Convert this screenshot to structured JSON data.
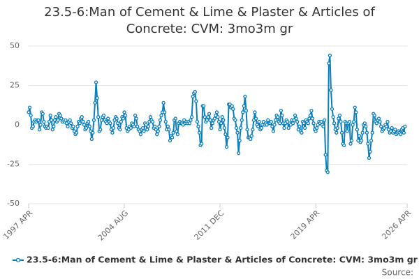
{
  "chart_data": {
    "type": "line",
    "title": "23.5-6:Man of Cement & Lime & Plaster & Articles of Concrete: CVM: 3mo3m gr",
    "source": "Source:",
    "x": [
      "1997-04",
      "1997-05",
      "1997-06",
      "1997-07",
      "1997-08",
      "1997-09",
      "1997-10",
      "1997-11",
      "1997-12",
      "1998-01",
      "1998-02",
      "1998-03",
      "1998-04",
      "1998-05",
      "1998-06",
      "1998-07",
      "1998-08",
      "1998-09",
      "1998-10",
      "1998-11",
      "1998-12",
      "1999-01",
      "1999-02",
      "1999-03",
      "1999-04",
      "1999-05",
      "1999-06",
      "1999-07",
      "1999-08",
      "1999-09",
      "1999-10",
      "1999-11",
      "1999-12",
      "2000-01",
      "2000-02",
      "2000-03",
      "2000-04",
      "2000-05",
      "2000-06",
      "2000-07",
      "2000-08",
      "2000-09",
      "2000-10",
      "2000-11",
      "2000-12",
      "2001-01",
      "2001-02",
      "2001-03",
      "2001-04",
      "2001-05",
      "2001-06",
      "2001-07",
      "2001-08",
      "2001-09",
      "2001-10",
      "2001-11",
      "2001-12",
      "2002-01",
      "2002-02",
      "2002-03",
      "2002-04",
      "2002-05",
      "2002-06",
      "2002-07",
      "2002-08",
      "2002-09",
      "2002-10",
      "2002-11",
      "2002-12",
      "2003-01",
      "2003-02",
      "2003-03",
      "2003-04",
      "2003-05",
      "2003-06",
      "2003-07",
      "2003-08",
      "2003-09",
      "2003-10",
      "2003-11",
      "2003-12",
      "2004-01",
      "2004-02",
      "2004-03",
      "2004-04",
      "2004-05",
      "2004-06",
      "2004-07",
      "2004-08",
      "2004-09",
      "2004-10",
      "2004-11",
      "2004-12",
      "2005-01",
      "2005-02",
      "2005-03",
      "2005-04",
      "2005-05",
      "2005-06",
      "2005-07",
      "2005-08",
      "2005-09",
      "2005-10",
      "2005-11",
      "2005-12",
      "2006-01",
      "2006-02",
      "2006-03",
      "2006-04",
      "2006-05",
      "2006-06",
      "2006-07",
      "2006-08",
      "2006-09",
      "2006-10",
      "2006-11",
      "2006-12",
      "2007-01",
      "2007-02",
      "2007-03",
      "2007-04",
      "2007-05",
      "2007-06",
      "2007-07",
      "2007-08",
      "2007-09",
      "2007-10",
      "2007-11",
      "2007-12",
      "2008-01",
      "2008-02",
      "2008-03",
      "2008-04",
      "2008-05",
      "2008-06",
      "2008-07",
      "2008-08",
      "2008-09",
      "2008-10",
      "2008-11",
      "2008-12",
      "2009-01",
      "2009-02",
      "2009-03",
      "2009-04",
      "2009-05",
      "2009-06",
      "2009-07",
      "2009-08",
      "2009-09",
      "2009-10",
      "2009-11",
      "2009-12",
      "2010-01",
      "2010-02",
      "2010-03",
      "2010-04",
      "2010-05",
      "2010-06",
      "2010-07",
      "2010-08",
      "2010-09",
      "2010-10",
      "2010-11",
      "2010-12",
      "2011-01",
      "2011-02",
      "2011-03",
      "2011-04",
      "2011-05",
      "2011-06",
      "2011-07",
      "2011-08",
      "2011-09",
      "2011-10",
      "2011-11",
      "2011-12",
      "2012-01",
      "2012-02",
      "2012-03",
      "2012-04",
      "2012-05",
      "2012-06",
      "2012-07",
      "2012-08",
      "2012-09",
      "2012-10",
      "2012-11",
      "2012-12",
      "2013-01",
      "2013-02",
      "2013-03",
      "2013-04",
      "2013-05",
      "2013-06",
      "2013-07",
      "2013-08",
      "2013-09",
      "2013-10",
      "2013-11",
      "2013-12",
      "2014-01",
      "2014-02",
      "2014-03",
      "2014-04",
      "2014-05",
      "2014-06",
      "2014-07",
      "2014-08",
      "2014-09",
      "2014-10",
      "2014-11",
      "2014-12",
      "2015-01",
      "2015-02",
      "2015-03",
      "2015-04",
      "2015-05",
      "2015-06",
      "2015-07",
      "2015-08",
      "2015-09",
      "2015-10",
      "2015-11",
      "2015-12",
      "2016-01",
      "2016-02",
      "2016-03",
      "2016-04",
      "2016-05",
      "2016-06",
      "2016-07",
      "2016-08",
      "2016-09",
      "2016-10",
      "2016-11",
      "2016-12",
      "2017-01",
      "2017-02",
      "2017-03",
      "2017-04",
      "2017-05",
      "2017-06",
      "2017-07",
      "2017-08",
      "2017-09",
      "2017-10",
      "2017-11",
      "2017-12",
      "2018-01",
      "2018-02",
      "2018-03",
      "2018-04",
      "2018-05",
      "2018-06",
      "2018-07",
      "2018-08",
      "2018-09",
      "2018-10",
      "2018-11",
      "2018-12",
      "2019-01",
      "2019-02",
      "2019-03",
      "2019-04",
      "2019-05",
      "2019-06",
      "2019-07",
      "2019-08",
      "2019-09",
      "2019-10",
      "2019-11",
      "2019-12",
      "2020-01",
      "2020-02",
      "2020-03",
      "2020-04",
      "2020-05",
      "2020-06",
      "2020-07",
      "2020-08",
      "2020-09",
      "2020-10",
      "2020-11",
      "2020-12",
      "2021-01",
      "2021-02",
      "2021-03",
      "2021-04",
      "2021-05",
      "2021-06",
      "2021-07",
      "2021-08",
      "2021-09",
      "2021-10",
      "2021-11",
      "2021-12",
      "2022-01",
      "2022-02",
      "2022-03",
      "2022-04",
      "2022-05",
      "2022-06",
      "2022-07",
      "2022-08",
      "2022-09",
      "2022-10",
      "2022-11",
      "2022-12",
      "2023-01",
      "2023-02",
      "2023-03",
      "2023-04",
      "2023-05",
      "2023-06",
      "2023-07",
      "2023-08",
      "2023-09",
      "2023-10",
      "2023-11",
      "2023-12",
      "2024-01",
      "2024-02",
      "2024-03",
      "2024-04",
      "2024-05",
      "2024-06",
      "2024-07",
      "2024-08",
      "2024-09",
      "2024-10",
      "2024-11",
      "2024-12",
      "2025-01",
      "2025-02",
      "2025-03",
      "2025-04",
      "2025-05",
      "2025-06",
      "2025-07",
      "2025-08",
      "2025-09",
      "2025-10",
      "2025-11",
      "2025-12",
      "2026-01",
      "2026-02"
    ],
    "series": [
      {
        "name": "23.5-6:Man of Cement & Lime & Plaster & Articles of Concrete: CVM: 3mo3m gr",
        "color": "#0a7fbd",
        "values": [
          8,
          11,
          6,
          -2,
          -1,
          2,
          3,
          2,
          3,
          3,
          -3,
          0,
          8,
          7,
          2,
          -1,
          -2,
          -1,
          -2,
          2,
          6,
          3,
          -3,
          -1,
          3,
          5,
          2,
          3,
          7,
          6,
          4,
          2,
          3,
          2,
          3,
          1,
          -1,
          2,
          3,
          1,
          -2,
          -1,
          -4,
          -6,
          -5,
          -1,
          2,
          1,
          4,
          5,
          2,
          0,
          -3,
          -2,
          1,
          2,
          -1,
          -4,
          -9,
          -5,
          3,
          14,
          27,
          17,
          5,
          -4,
          -3,
          3,
          5,
          6,
          3,
          2,
          1,
          4,
          2,
          1,
          -3,
          -5,
          -2,
          3,
          5,
          4,
          1,
          -2,
          -3,
          2,
          5,
          4,
          8,
          6,
          -2,
          -4,
          -3,
          -1,
          -2,
          1,
          0,
          -1,
          6,
          4,
          -1,
          -3,
          -4,
          -6,
          -3,
          -2,
          -4,
          1,
          0,
          -3,
          -1,
          2,
          5,
          3,
          2,
          -2,
          -1,
          -3,
          -6,
          -4,
          -1,
          3,
          6,
          8,
          14,
          8,
          2,
          -3,
          -1,
          -3,
          -10,
          -7,
          -8,
          -5,
          3,
          4,
          -4,
          -6,
          1,
          2,
          1,
          1,
          0,
          3,
          1,
          2,
          1,
          2,
          1,
          3,
          5,
          18,
          20,
          21,
          15,
          2,
          -1,
          -5,
          -13,
          -12,
          12,
          12,
          5,
          2,
          3,
          5,
          7,
          3,
          -2,
          1,
          3,
          4,
          6,
          8,
          5,
          2,
          -3,
          1,
          5,
          3,
          -2,
          -6,
          -14,
          -8,
          13,
          13,
          11,
          12,
          10,
          4,
          3,
          -2,
          -5,
          -18,
          -10,
          -2,
          3,
          8,
          12,
          18,
          9,
          -3,
          -8,
          -8,
          -9,
          -7,
          -3,
          3,
          8,
          4,
          0,
          -1,
          2,
          -3,
          -2,
          0,
          2,
          0,
          1,
          0,
          3,
          1,
          1,
          2,
          -1,
          -4,
          0,
          3,
          6,
          5,
          2,
          1,
          9,
          6,
          1,
          -2,
          1,
          3,
          2,
          -2,
          1,
          0,
          3,
          1,
          3,
          6,
          4,
          2,
          -3,
          -1,
          -4,
          -5,
          2,
          1,
          -2,
          3,
          2,
          1,
          4,
          6,
          9,
          4,
          1,
          -3,
          -4,
          -2,
          0,
          2,
          1,
          2,
          0,
          -1,
          3,
          -19,
          -29,
          -30,
          39,
          44,
          22,
          10,
          5,
          1,
          -3,
          -5,
          -2,
          4,
          6,
          2,
          -5,
          -12,
          -13,
          2,
          1,
          -4,
          1,
          2,
          -12,
          -10,
          0,
          2,
          11,
          8,
          -3,
          -10,
          -7,
          -11,
          -10,
          -5,
          0,
          1,
          -1,
          -5,
          -12,
          -21,
          -17,
          -10,
          -5,
          7,
          6,
          2,
          1,
          3,
          4,
          2,
          -1,
          -4,
          -3,
          -2,
          0,
          -1,
          2,
          -3,
          -5,
          -4,
          -2,
          -5,
          -4,
          -3,
          -6,
          -5,
          -4,
          -5,
          -6,
          -3,
          -2,
          -5,
          -1
        ]
      }
    ],
    "xlim": [
      "1997-04",
      "2026-04"
    ],
    "xticks": [
      {
        "value": "1997-04",
        "label": "1997 APR"
      },
      {
        "value": "2004-08",
        "label": "2004 AUG"
      },
      {
        "value": "2011-12",
        "label": "2011 DEC"
      },
      {
        "value": "2019-04",
        "label": "2019 APR"
      },
      {
        "value": "2026-04",
        "label": "2026 APR"
      }
    ],
    "ylim": [
      -50,
      50
    ],
    "yticks": [
      -50,
      -25,
      0,
      25,
      50
    ],
    "grid": true
  }
}
